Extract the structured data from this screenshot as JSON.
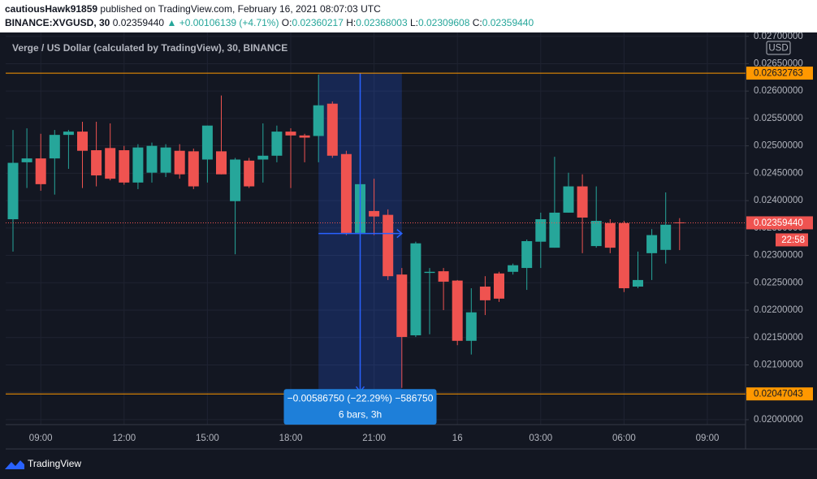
{
  "header": {
    "author": "cautiousHawk91859",
    "published": "published on TradingView.com, February 16, 2021 08:07:03 UTC",
    "symbol": "BINANCE:XVGUSD, 30",
    "last": "0.02359440",
    "arrow": "▲",
    "change": "+0.00106139 (+4.71%)",
    "ohlc": [
      {
        "label": "O:",
        "value": "0.02360217"
      },
      {
        "label": "H:",
        "value": "0.02368003"
      },
      {
        "label": "L:",
        "value": "0.02309608"
      },
      {
        "label": "C:",
        "value": "0.02359440"
      }
    ]
  },
  "chart_data": {
    "type": "candlestick",
    "title": "Verge / US Dollar (calculated by TradingView), 30, BINANCE",
    "currency": "USD",
    "up_color": "#26a69a",
    "down_color": "#ef5350",
    "grid": true,
    "categories": [
      null,
      null,
      "09:00",
      null,
      null,
      null,
      null,
      null,
      "12:00",
      null,
      null,
      null,
      null,
      null,
      "15:00",
      null,
      null,
      null,
      null,
      null,
      "18:00",
      null,
      null,
      null,
      null,
      null,
      "21:00",
      null,
      null,
      null,
      null,
      null,
      "16",
      null,
      null,
      null,
      null,
      null,
      "03:00",
      null,
      null,
      null,
      null,
      null,
      "06:00",
      null,
      null,
      null,
      null,
      null,
      "09:00"
    ],
    "open": [
      0.02366,
      0.0247,
      0.02477,
      0.02477,
      0.0252,
      0.02526,
      0.02492,
      0.02496,
      0.02492,
      0.02433,
      0.02451,
      0.02451,
      0.02491,
      0.0249,
      0.02475,
      0.0249,
      0.02399,
      0.02473,
      0.02475,
      0.02482,
      0.02526,
      0.02519,
      0.02518,
      0.02577,
      0.02485,
      0.02341,
      0.02381,
      0.02374,
      0.02265,
      0.02154,
      0.02268,
      0.02271,
      0.02254,
      0.02144,
      0.02243,
      0.02267,
      0.0227,
      0.02277,
      0.02325,
      0.02314,
      0.02378,
      0.02426,
      0.02317,
      0.02359,
      0.02359,
      0.02243,
      0.02304,
      0.0231,
      0.02360217,
      null,
      null
    ],
    "high": [
      0.02529,
      0.02532,
      0.02522,
      0.02529,
      0.02529,
      0.02544,
      0.02544,
      0.02541,
      0.025,
      0.02503,
      0.02506,
      0.02503,
      0.02503,
      0.02495,
      0.02537,
      0.02592,
      0.02478,
      0.02478,
      0.02541,
      0.02537,
      0.02532,
      0.02522,
      0.0263,
      0.02581,
      0.02491,
      0.02437,
      0.0244,
      0.02384,
      0.02277,
      0.02325,
      0.02277,
      0.02277,
      0.02255,
      0.0224,
      0.02262,
      0.0227,
      0.02285,
      0.02329,
      0.02378,
      0.0248,
      0.02451,
      0.02448,
      0.02426,
      0.02366,
      0.02363,
      0.02307,
      0.02348,
      0.02415,
      0.02368003,
      null,
      null
    ],
    "low": [
      0.02307,
      0.02423,
      0.02418,
      0.02411,
      0.02458,
      0.02423,
      0.02426,
      0.02437,
      0.02429,
      0.02421,
      0.02433,
      0.02443,
      0.0244,
      0.02421,
      0.02433,
      0.02448,
      0.02302,
      0.02423,
      0.02433,
      0.0247,
      0.02423,
      0.0247,
      0.0247,
      0.02478,
      0.02337,
      0.02329,
      0.02337,
      0.02255,
      0.02058,
      0.02151,
      0.02156,
      0.022,
      0.02136,
      0.02119,
      0.02191,
      0.02215,
      0.02265,
      0.02237,
      0.02277,
      0.02314,
      0.02378,
      0.02304,
      0.02314,
      0.02304,
      0.02233,
      0.0224,
      0.02255,
      0.02285,
      0.02309608,
      null,
      null
    ],
    "close": [
      0.02469,
      0.02477,
      0.0243,
      0.0252,
      0.02526,
      0.02491,
      0.02446,
      0.0244,
      0.02433,
      0.02497,
      0.025,
      0.02497,
      0.02448,
      0.02426,
      0.02537,
      0.02448,
      0.02475,
      0.02426,
      0.02482,
      0.02526,
      0.02519,
      0.02515,
      0.02574,
      0.02482,
      0.02341,
      0.0243,
      0.02371,
      0.02262,
      0.02151,
      0.02322,
      0.0227,
      0.02252,
      0.02144,
      0.02196,
      0.02218,
      0.02221,
      0.02282,
      0.02326,
      0.02366,
      0.02378,
      0.02426,
      0.02369,
      0.02363,
      0.02314,
      0.0224,
      0.02255,
      0.02337,
      0.02356,
      0.0235944,
      null,
      null
    ],
    "ylim": [
      0.01991,
      0.02707
    ],
    "yticks": [
      {
        "value": 0.02,
        "label": "0.02000000"
      },
      {
        "value": 0.0205,
        "label": "0.02050000"
      },
      {
        "value": 0.021,
        "label": "0.02100000"
      },
      {
        "value": 0.0215,
        "label": "0.02150000"
      },
      {
        "value": 0.022,
        "label": "0.02200000"
      },
      {
        "value": 0.0225,
        "label": "0.02250000"
      },
      {
        "value": 0.023,
        "label": "0.02300000"
      },
      {
        "value": 0.0235,
        "label": "0.02350000"
      },
      {
        "value": 0.024,
        "label": "0.02400000"
      },
      {
        "value": 0.0245,
        "label": "0.02450000"
      },
      {
        "value": 0.025,
        "label": "0.02500000"
      },
      {
        "value": 0.0255,
        "label": "0.02550000"
      },
      {
        "value": 0.026,
        "label": "0.02600000"
      },
      {
        "value": 0.0265,
        "label": "0.02650000"
      },
      {
        "value": 0.027,
        "label": "0.02700000"
      }
    ],
    "hlines": [
      0.02632763,
      0.02047043
    ],
    "hline_color": "#ff9800",
    "last_price": {
      "value": 0.0235944,
      "label": "0.02359440",
      "countdown": "22:58"
    },
    "measure": {
      "change": "−0.00586750 (−22.29%) −586750",
      "span": "6 bars, 3h"
    }
  },
  "footer": {
    "brand": "TradingView"
  }
}
